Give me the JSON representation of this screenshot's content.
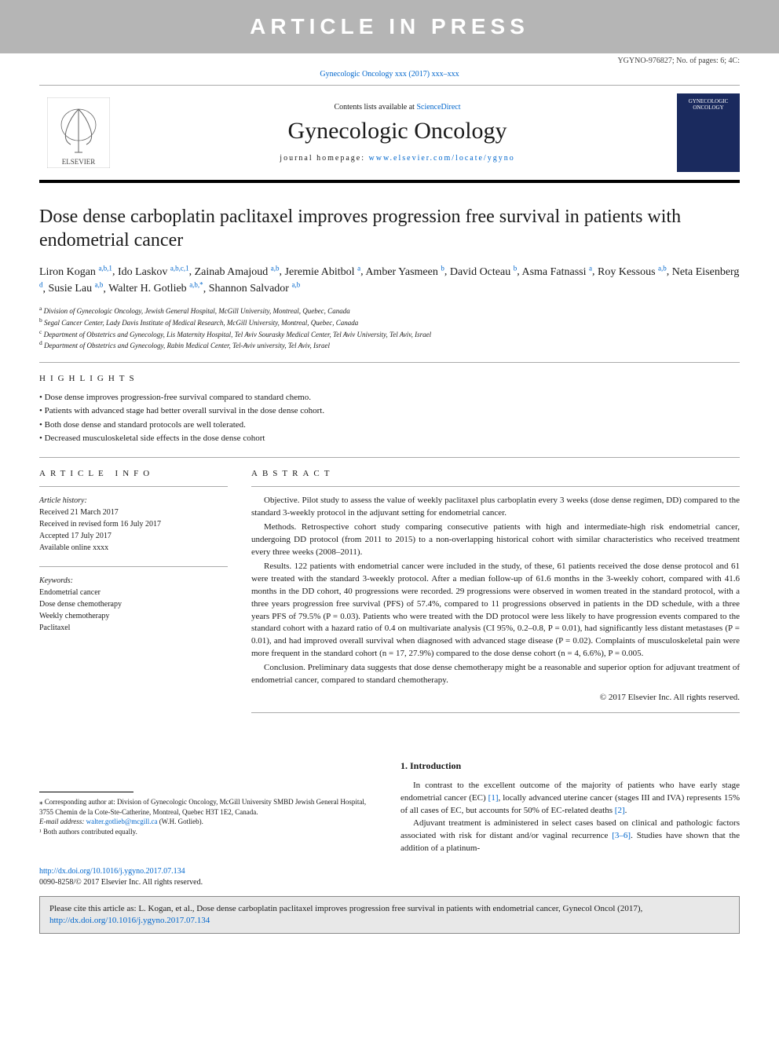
{
  "banner": "ARTICLE IN PRESS",
  "docId": "YGYNO-976827; No. of pages: 6; 4C:",
  "journalRef": {
    "text": "Gynecologic Oncology xxx (2017) xxx–xxx",
    "link": "Gynecologic Oncology"
  },
  "masthead": {
    "contentsPrefix": "Contents lists available at ",
    "contentsLink": "ScienceDirect",
    "journalName": "Gynecologic Oncology",
    "homepagePrefix": "journal homepage: ",
    "homepageUrl": "www.elsevier.com/locate/ygyno",
    "elsevierLabel": "ELSEVIER",
    "coverLabel": "GYNECOLOGIC ONCOLOGY"
  },
  "title": "Dose dense carboplatin paclitaxel improves progression free survival in patients with endometrial cancer",
  "authors": [
    {
      "name": "Liron Kogan",
      "marks": "a,b,1"
    },
    {
      "name": "Ido Laskov",
      "marks": "a,b,c,1"
    },
    {
      "name": "Zainab Amajoud",
      "marks": "a,b"
    },
    {
      "name": "Jeremie Abitbol",
      "marks": "a"
    },
    {
      "name": "Amber Yasmeen",
      "marks": "b"
    },
    {
      "name": "David Octeau",
      "marks": "b"
    },
    {
      "name": "Asma Fatnassi",
      "marks": "a"
    },
    {
      "name": "Roy Kessous",
      "marks": "a,b"
    },
    {
      "name": "Neta Eisenberg",
      "marks": "d"
    },
    {
      "name": "Susie Lau",
      "marks": "a,b"
    },
    {
      "name": "Walter H. Gotlieb",
      "marks": "a,b,*"
    },
    {
      "name": "Shannon Salvador",
      "marks": "a,b"
    }
  ],
  "affiliations": [
    {
      "key": "a",
      "text": "Division of Gynecologic Oncology, Jewish General Hospital, McGill University, Montreal, Quebec, Canada"
    },
    {
      "key": "b",
      "text": "Segal Cancer Center, Lady Davis Institute of Medical Research, McGill University, Montreal, Quebec, Canada"
    },
    {
      "key": "c",
      "text": "Department of Obstetrics and Gynecology, Lis Maternity Hospital, Tel Aviv Sourasky Medical Center, Tel Aviv University, Tel Aviv, Israel"
    },
    {
      "key": "d",
      "text": "Department of Obstetrics and Gynecology, Rabin Medical Center, Tel-Aviv university, Tel Aviv, Israel"
    }
  ],
  "highlightsLabel": "HIGHLIGHTS",
  "highlights": [
    "Dose dense improves progression-free survival compared to standard chemo.",
    "Patients with advanced stage had better overall survival in the dose dense cohort.",
    "Both dose dense and standard protocols are well tolerated.",
    "Decreased musculoskeletal side effects in the dose dense cohort"
  ],
  "articleInfoLabel": "ARTICLE INFO",
  "abstractLabel": "ABSTRACT",
  "historyLabel": "Article history:",
  "history": [
    "Received 21 March 2017",
    "Received in revised form 16 July 2017",
    "Accepted 17 July 2017",
    "Available online xxxx"
  ],
  "keywordsLabel": "Keywords:",
  "keywords": [
    "Endometrial cancer",
    "Dose dense chemotherapy",
    "Weekly chemotherapy",
    "Paclitaxel"
  ],
  "abstract": {
    "objective": "Objective. Pilot study to assess the value of weekly paclitaxel plus carboplatin every 3 weeks (dose dense regimen, DD) compared to the standard 3-weekly protocol in the adjuvant setting for endometrial cancer.",
    "methods": "Methods. Retrospective cohort study comparing consecutive patients with high and intermediate-high risk endometrial cancer, undergoing DD protocol (from 2011 to 2015) to a non-overlapping historical cohort with similar characteristics who received treatment every three weeks (2008–2011).",
    "results": "Results. 122 patients with endometrial cancer were included in the study, of these, 61 patients received the dose dense protocol and 61 were treated with the standard 3-weekly protocol. After a median follow-up of 61.6 months in the 3-weekly cohort, compared with 41.6 months in the DD cohort, 40 progressions were recorded. 29 progressions were observed in women treated in the standard protocol, with a three years progression free survival (PFS) of 57.4%, compared to 11 progressions observed in patients in the DD schedule, with a three years PFS of 79.5% (P = 0.03). Patients who were treated with the DD protocol were less likely to have progression events compared to the standard cohort with a hazard ratio of 0.4 on multivariate analysis (CI 95%, 0.2–0.8, P = 0.01), had significantly less distant metastases (P = 0.01), and had improved overall survival when diagnosed with advanced stage disease (P = 0.02). Complaints of musculoskeletal pain were more frequent in the standard cohort (n = 17, 27.9%) compared to the dose dense cohort (n = 4, 6.6%), P = 0.005.",
    "conclusion": "Conclusion. Preliminary data suggests that dose dense chemotherapy might be a reasonable and superior option for adjuvant treatment of endometrial cancer, compared to standard chemotherapy.",
    "copyright": "© 2017 Elsevier Inc. All rights reserved."
  },
  "intro": {
    "heading": "1. Introduction",
    "p1a": "In contrast to the excellent outcome of the majority of patients who have early stage endometrial cancer (EC) ",
    "ref1": "[1]",
    "p1b": ", locally advanced uterine cancer (stages III and IVA) represents 15% of all cases of EC, but accounts for 50% of EC-related deaths ",
    "ref2": "[2]",
    "p1c": ".",
    "p2a": "Adjuvant treatment is administered in select cases based on clinical and pathologic factors associated with risk for distant and/or vaginal recurrence ",
    "ref3": "[3–6]",
    "p2b": ". Studies have shown that the addition of a platinum-"
  },
  "footnotes": {
    "corr": "⁎ Corresponding author at: Division of Gynecologic Oncology, McGill University SMBD Jewish General Hospital, 3755 Chemin de la Cote-Ste-Catherine, Montreal, Quebec H3T 1E2, Canada.",
    "emailLabel": "E-mail address: ",
    "email": "walter.gotlieb@mcgill.ca",
    "emailSuffix": " (W.H. Gotlieb).",
    "equal": "¹ Both authors contributed equally."
  },
  "doi": {
    "url": "http://dx.doi.org/10.1016/j.ygyno.2017.07.134",
    "issn": "0090-8258/© 2017 Elsevier Inc. All rights reserved."
  },
  "cite": {
    "text": "Please cite this article as: L. Kogan, et al., Dose dense carboplatin paclitaxel improves progression free survival in patients with endometrial cancer, Gynecol Oncol (2017), ",
    "url": "http://dx.doi.org/10.1016/j.ygyno.2017.07.134"
  },
  "colors": {
    "bannerBg": "#b5b5b5",
    "linkColor": "#0066cc",
    "coverBg": "#1a2a5e"
  }
}
